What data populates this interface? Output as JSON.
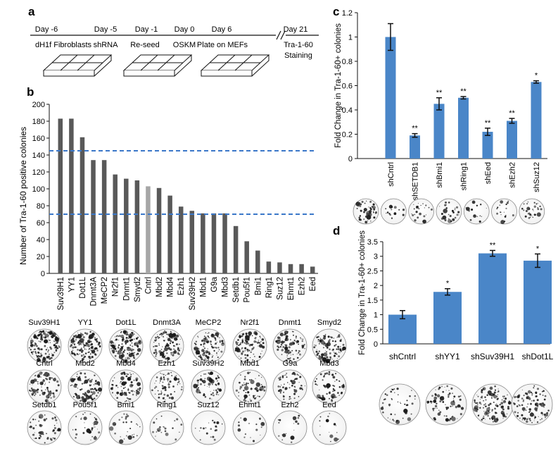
{
  "panel_a": {
    "label": "a",
    "steps": [
      {
        "day": "Day -6",
        "desc": "dH1f Fibroblasts"
      },
      {
        "day": "Day -5",
        "desc": "shRNA"
      },
      {
        "day": "Day -1",
        "desc": "Re-seed"
      },
      {
        "day": "Day 0",
        "desc": "OSKM"
      },
      {
        "day": "Day 6",
        "desc": "Plate on MEFs"
      },
      {
        "day": "Day 21",
        "desc": "Tra-1-60",
        "desc2": "Staining"
      }
    ]
  },
  "chart_data": [
    {
      "panel": "b",
      "type": "bar",
      "ylabel": "Number of Tra-1-60 positive colonies",
      "ylim": [
        0,
        200
      ],
      "yticks": [
        0,
        20,
        40,
        60,
        80,
        100,
        120,
        140,
        160,
        180,
        200
      ],
      "categories": [
        "Suv39H1",
        "YY1",
        "Dot1L",
        "Dnmt3A",
        "MeCP2",
        "Nr2f1",
        "Dnmt1",
        "Smyd2",
        "Cntrl",
        "Mbd2",
        "Mbd4",
        "Ezh1",
        "Suv39H2",
        "Mbd1",
        "G9a",
        "Mbd3",
        "Setdb1",
        "Pou5f1",
        "Bmi1",
        "Ring1",
        "Suz12",
        "Ehmt1",
        "Ezh2",
        "Eed"
      ],
      "values": [
        183,
        183,
        161,
        134,
        134,
        117,
        112,
        110,
        103,
        101,
        92,
        79,
        74,
        71,
        71,
        71,
        56,
        38,
        27,
        14,
        13,
        11,
        11,
        8
      ],
      "highlight_category": "Cntrl",
      "colors": {
        "bar": "#595959",
        "highlight": "#a6a6a6",
        "threshold": "#3b78c9"
      },
      "reference_lines": [
        145,
        70
      ],
      "plates": [
        [
          "Suv39H1",
          "YY1",
          "Dot1L",
          "Dnmt3A",
          "MeCP2",
          "Nr2f1",
          "Dnmt1",
          "Smyd2"
        ],
        [
          "Cntrl",
          "Mbd2",
          "Mbd4",
          "Ezh1",
          "Suv39H2",
          "Mbd1",
          "G9a",
          "Mbd3"
        ],
        [
          "Setdb1",
          "Pou5f1",
          "Bmi1",
          "Ring1",
          "Suz12",
          "Ehmt1",
          "Ezh2",
          "Eed"
        ]
      ]
    },
    {
      "panel": "c",
      "type": "bar",
      "ylabel": "Fold Change in Tra-1-60+ colonies",
      "ylim": [
        0,
        1.2
      ],
      "yticks": [
        "0",
        "0.2",
        "0.4",
        "0.6",
        "0.8",
        "1",
        "1.2"
      ],
      "categories": [
        "shCntrl",
        "shSETDB1",
        "shBmi1",
        "shRing1",
        "shEed",
        "shEzh2",
        "shSuz12"
      ],
      "values": [
        1.0,
        0.19,
        0.45,
        0.5,
        0.22,
        0.31,
        0.63
      ],
      "errors": [
        0.11,
        0.015,
        0.05,
        0.01,
        0.03,
        0.02,
        0.01
      ],
      "significance": [
        "",
        "**",
        "**",
        "**",
        "**",
        "**",
        "*"
      ],
      "colors": {
        "bar": "#4a86c8"
      }
    },
    {
      "panel": "d",
      "type": "bar",
      "ylabel": "Fold Change in Tra-1-60+ colonies",
      "ylim": [
        0,
        3.5
      ],
      "yticks": [
        "0",
        "0.5",
        "1",
        "1.5",
        "2",
        "2.5",
        "3",
        "3.5"
      ],
      "categories": [
        "shCntrl",
        "shYY1",
        "shSuv39H1",
        "shDot1L"
      ],
      "values": [
        1.0,
        1.78,
        3.1,
        2.85
      ],
      "errors": [
        0.14,
        0.11,
        0.1,
        0.23
      ],
      "significance": [
        "",
        "*",
        "**",
        "*"
      ],
      "colors": {
        "bar": "#4a86c8"
      }
    }
  ],
  "panel_labels": {
    "b": "b",
    "c": "c",
    "d": "d"
  }
}
